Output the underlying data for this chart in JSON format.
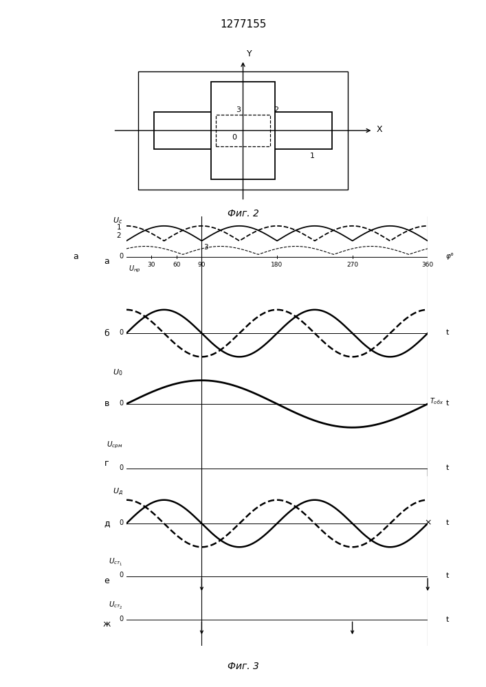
{
  "title": "1277155",
  "fig2_caption": "Фиг. 2",
  "fig3_caption": "Фиг. 3",
  "bg_color": "#ffffff",
  "line_color": "#000000",
  "phi_ticks": [
    "30",
    "60",
    "90",
    "180",
    "270",
    "360"
  ],
  "phi_label": "φ°",
  "t_label": "t",
  "Tobx_label": "Tобх",
  "u_nr_label": "Uнр",
  "u_0_label": "U₀",
  "u_srm_label": "Uсрм",
  "u_d_label": "Uд",
  "uc_label": "Uс",
  "u_st1_label": "Uст₁",
  "u_st2_label": "Uст₂",
  "row_labels": [
    "а",
    "б",
    "в",
    "г",
    "д",
    "е",
    "ж"
  ]
}
